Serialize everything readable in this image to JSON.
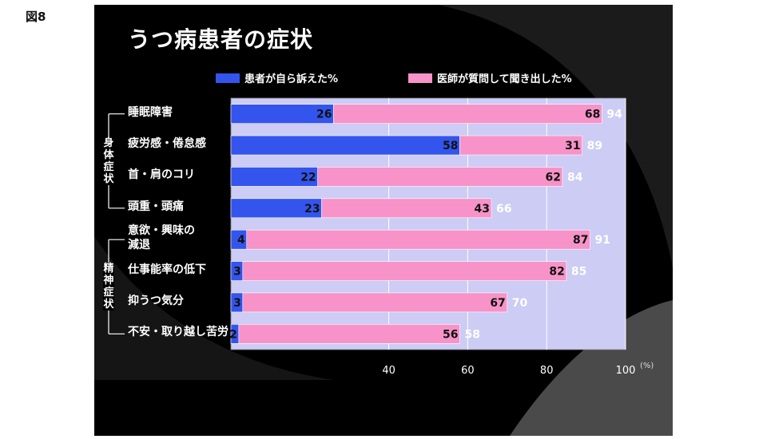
{
  "figure_label": "図8",
  "chart_data": {
    "type": "bar",
    "orientation": "horizontal",
    "stacked": true,
    "title": "うつ病患者の症状",
    "categories": [
      "睡眠障害",
      "疲労感・倦怠感",
      "首・肩のコリ",
      "頭重・頭痛",
      "意欲・興味の減退",
      "仕事能率の低下",
      "抑うつ気分",
      "不安・取り越し苦労"
    ],
    "category_display": [
      "睡眠障害",
      "疲労感・倦怠感",
      "首・肩のコリ",
      "頭重・頭痛",
      "意欲・興味の\n減退",
      "仕事能率の低下",
      "抑うつ気分",
      "不安・取り越し苦労"
    ],
    "series": [
      {
        "name": "患者が自ら訴えた%",
        "values": [
          26,
          58,
          22,
          23,
          4,
          3,
          3,
          2
        ],
        "color": "#3355ee"
      },
      {
        "name": "医師が質問して聞き出した%",
        "values": [
          68,
          31,
          62,
          43,
          87,
          82,
          67,
          56
        ],
        "color": "#f793c8"
      }
    ],
    "totals": [
      94,
      89,
      84,
      66,
      91,
      85,
      70,
      58
    ],
    "groups": [
      {
        "label": "身体症状",
        "from": 0,
        "to": 3
      },
      {
        "label": "精神症状",
        "from": 4,
        "to": 7
      }
    ],
    "x_ticks": [
      40,
      60,
      80,
      100
    ],
    "x_unit": "(%)",
    "xlim": [
      0,
      100
    ],
    "plot_background": "#ccccf5",
    "legend_position": "top"
  }
}
